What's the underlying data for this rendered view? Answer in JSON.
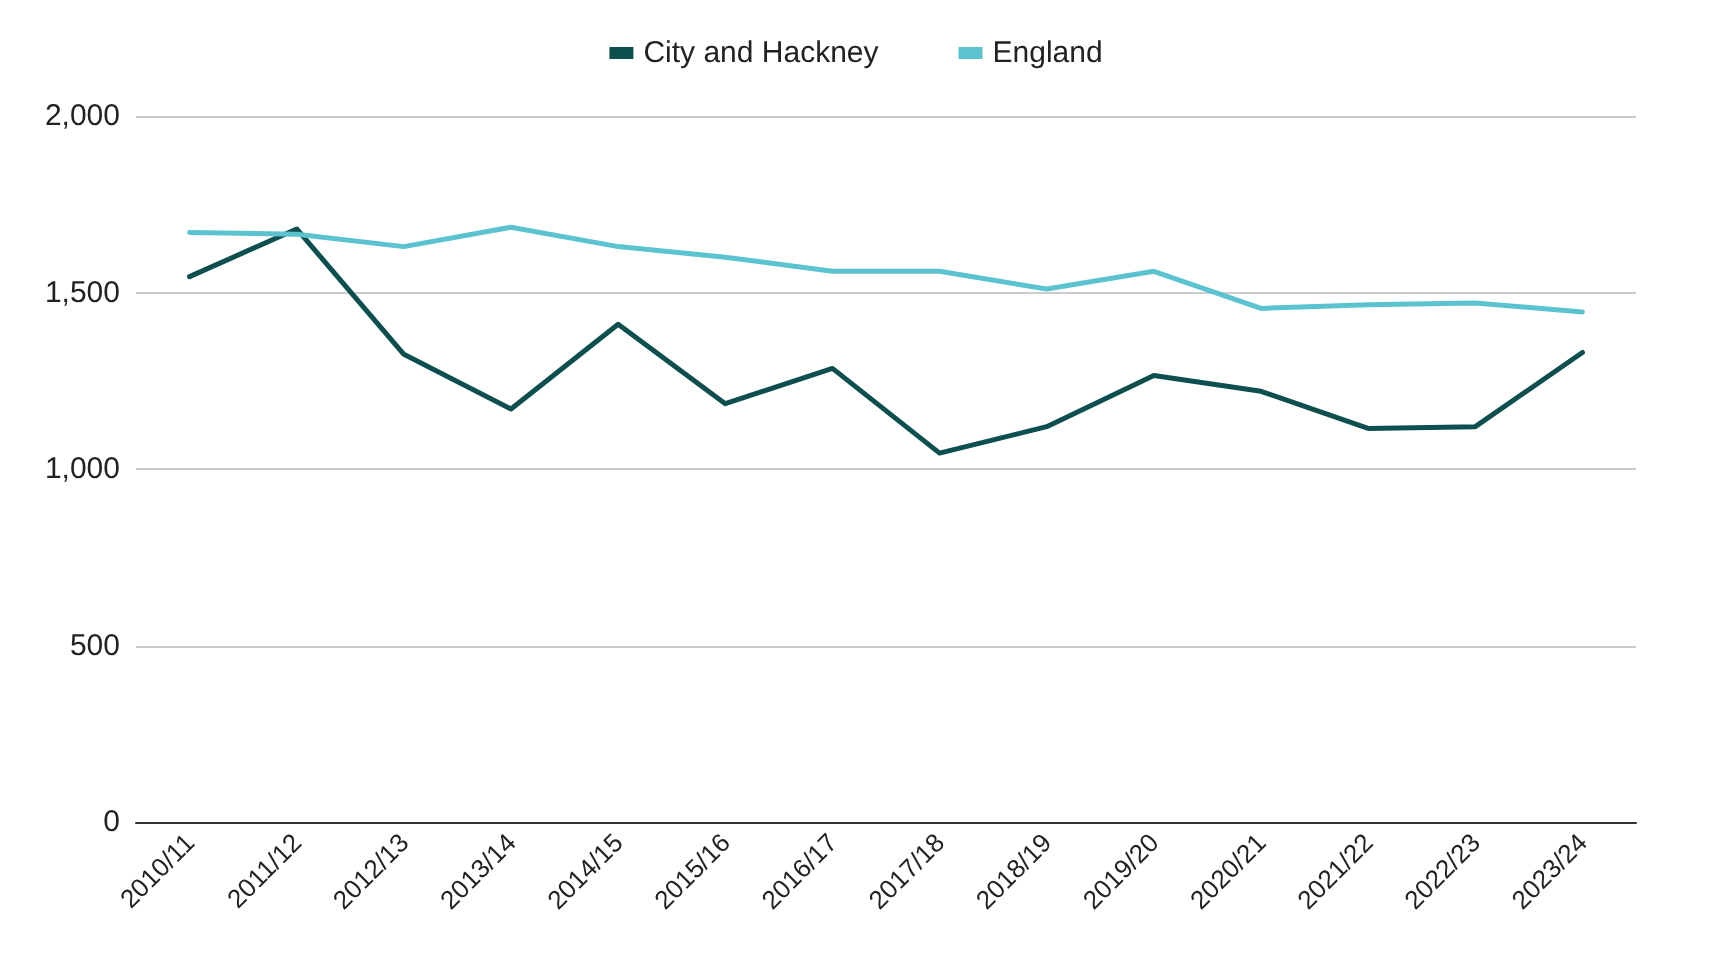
{
  "chart_data": {
    "type": "line",
    "categories": [
      "2010/11",
      "2011/12",
      "2012/13",
      "2013/14",
      "2014/15",
      "2015/16",
      "2016/17",
      "2017/18",
      "2018/19",
      "2019/20",
      "2020/21",
      "2021/22",
      "2022/23",
      "2023/24"
    ],
    "series": [
      {
        "name": "City and Hackney",
        "color": "#0d4f4f",
        "values": [
          1545,
          1680,
          1325,
          1170,
          1410,
          1185,
          1285,
          1045,
          1120,
          1265,
          1220,
          1115,
          1120,
          1330
        ]
      },
      {
        "name": "England",
        "color": "#5bc3d0",
        "values": [
          1670,
          1665,
          1630,
          1685,
          1630,
          1600,
          1560,
          1560,
          1510,
          1560,
          1455,
          1465,
          1470,
          1445
        ]
      }
    ],
    "ylim": [
      0,
      2000
    ],
    "yticks": [
      0,
      500,
      {
        "value": 1000,
        "label": "1,000"
      },
      {
        "value": 1500,
        "label": "1,500"
      },
      {
        "value": 2000,
        "label": "2,000"
      }
    ],
    "grid": "y",
    "legend": "top",
    "marker": "none",
    "line_style": "solid"
  }
}
